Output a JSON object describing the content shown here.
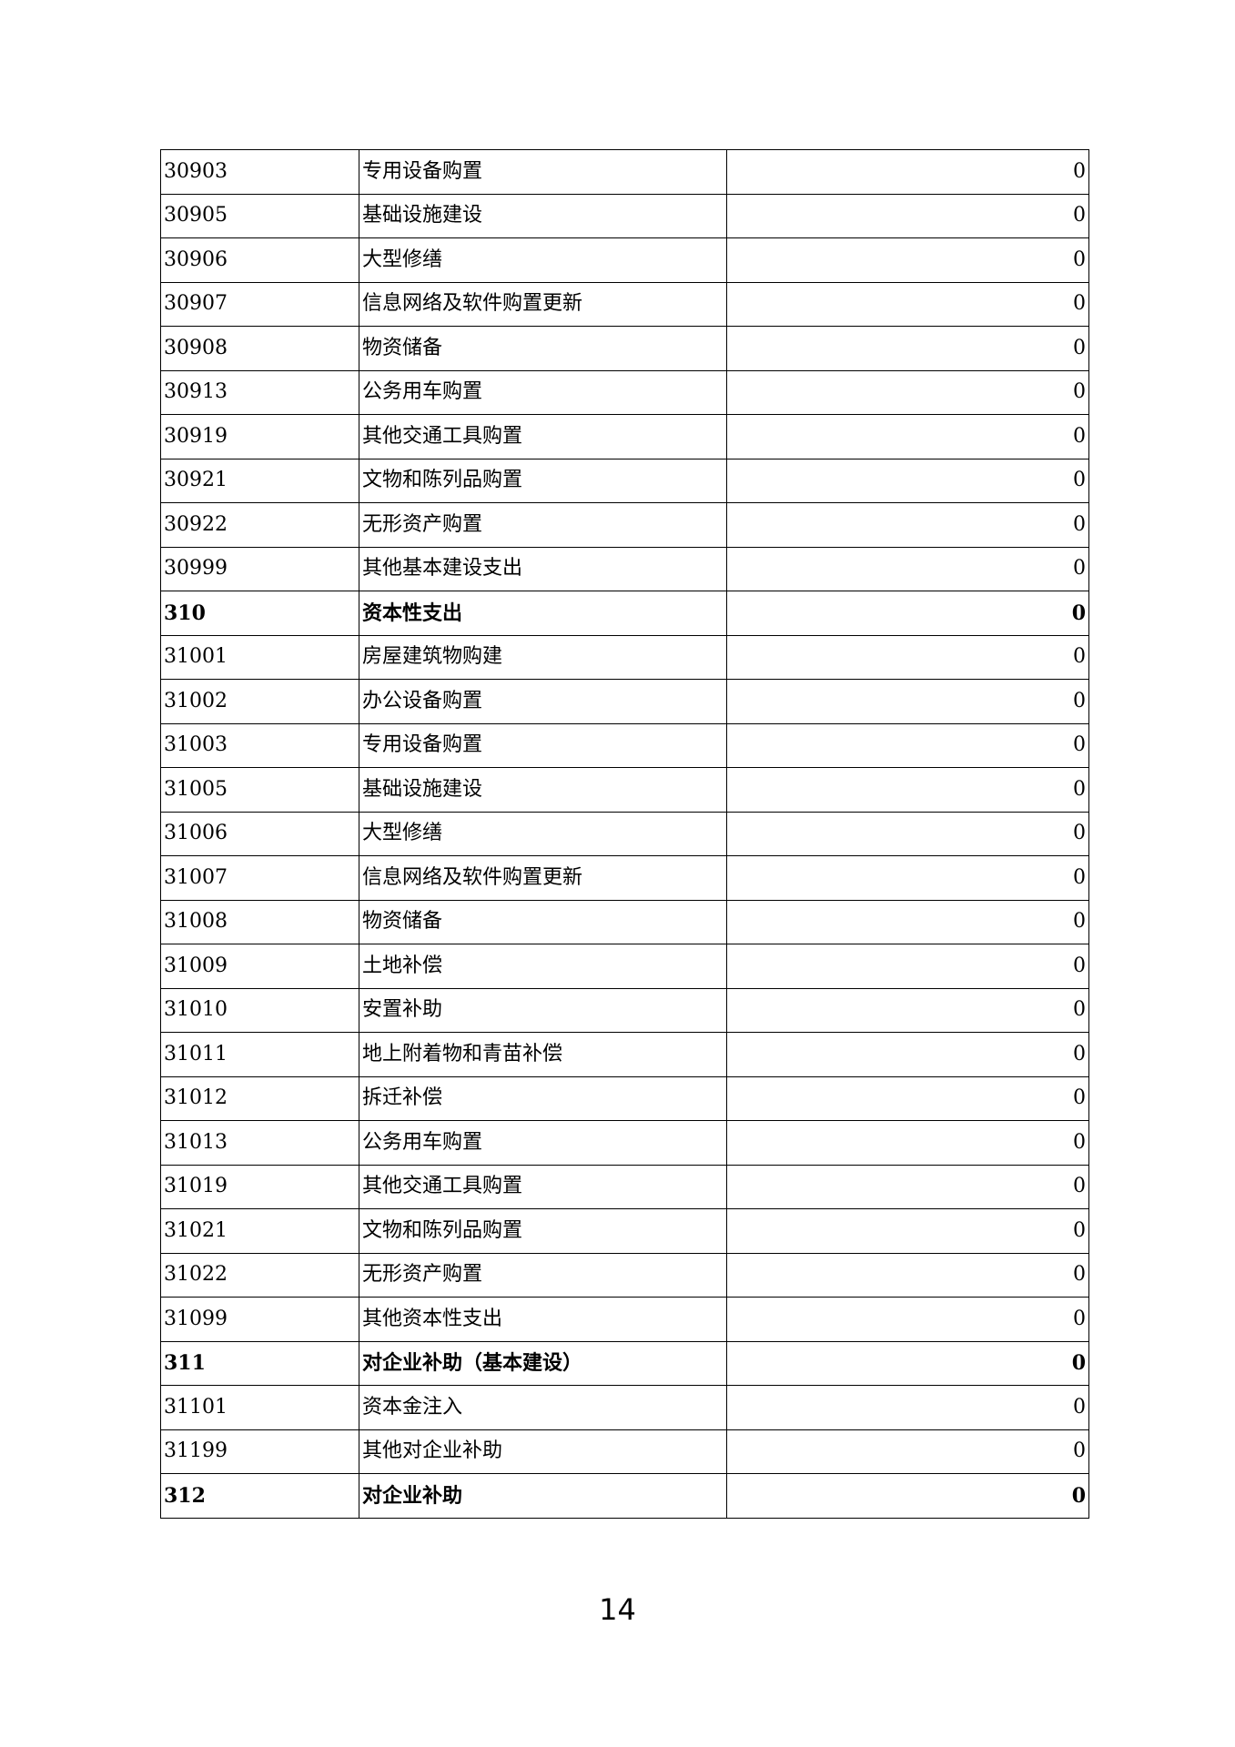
{
  "table": {
    "rows": [
      {
        "code": "30903",
        "name": "专用设备购置",
        "amount": "0",
        "bold": false
      },
      {
        "code": "30905",
        "name": "基础设施建设",
        "amount": "0",
        "bold": false
      },
      {
        "code": "30906",
        "name": "大型修缮",
        "amount": "0",
        "bold": false
      },
      {
        "code": "30907",
        "name": "信息网络及软件购置更新",
        "amount": "0",
        "bold": false
      },
      {
        "code": "30908",
        "name": "物资储备",
        "amount": "0",
        "bold": false
      },
      {
        "code": "30913",
        "name": "公务用车购置",
        "amount": "0",
        "bold": false
      },
      {
        "code": "30919",
        "name": "其他交通工具购置",
        "amount": "0",
        "bold": false
      },
      {
        "code": "30921",
        "name": "文物和陈列品购置",
        "amount": "0",
        "bold": false
      },
      {
        "code": "30922",
        "name": "无形资产购置",
        "amount": "0",
        "bold": false
      },
      {
        "code": "30999",
        "name": "其他基本建设支出",
        "amount": "0",
        "bold": false
      },
      {
        "code": "310",
        "name": "资本性支出",
        "amount": "0",
        "bold": true
      },
      {
        "code": "31001",
        "name": "房屋建筑物购建",
        "amount": "0",
        "bold": false
      },
      {
        "code": "31002",
        "name": "办公设备购置",
        "amount": "0",
        "bold": false
      },
      {
        "code": "31003",
        "name": "专用设备购置",
        "amount": "0",
        "bold": false
      },
      {
        "code": "31005",
        "name": "基础设施建设",
        "amount": "0",
        "bold": false
      },
      {
        "code": "31006",
        "name": "大型修缮",
        "amount": "0",
        "bold": false
      },
      {
        "code": "31007",
        "name": "信息网络及软件购置更新",
        "amount": "0",
        "bold": false
      },
      {
        "code": "31008",
        "name": "物资储备",
        "amount": "0",
        "bold": false
      },
      {
        "code": "31009",
        "name": "土地补偿",
        "amount": "0",
        "bold": false
      },
      {
        "code": "31010",
        "name": "安置补助",
        "amount": "0",
        "bold": false
      },
      {
        "code": "31011",
        "name": "地上附着物和青苗补偿",
        "amount": "0",
        "bold": false
      },
      {
        "code": "31012",
        "name": "拆迁补偿",
        "amount": "0",
        "bold": false
      },
      {
        "code": "31013",
        "name": "公务用车购置",
        "amount": "0",
        "bold": false
      },
      {
        "code": "31019",
        "name": "其他交通工具购置",
        "amount": "0",
        "bold": false
      },
      {
        "code": "31021",
        "name": "文物和陈列品购置",
        "amount": "0",
        "bold": false
      },
      {
        "code": "31022",
        "name": "无形资产购置",
        "amount": "0",
        "bold": false
      },
      {
        "code": "31099",
        "name": "其他资本性支出",
        "amount": "0",
        "bold": false
      },
      {
        "code": "311",
        "name": "对企业补助（基本建设）",
        "amount": "0",
        "bold": true
      },
      {
        "code": "31101",
        "name": "资本金注入",
        "amount": "0",
        "bold": false
      },
      {
        "code": "31199",
        "name": "其他对企业补助",
        "amount": "0",
        "bold": false
      },
      {
        "code": "312",
        "name": "对企业补助",
        "amount": "0",
        "bold": true
      }
    ]
  },
  "page_number": "14"
}
